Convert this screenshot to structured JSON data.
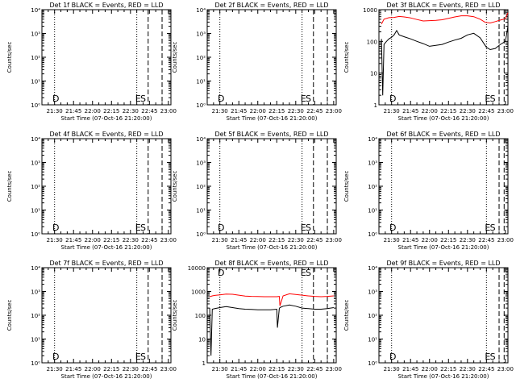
{
  "window": {
    "background": "#ffffff",
    "foreground": "#000000"
  },
  "x_axis": {
    "label": "Start Time (07-Oct-16 21:20:00)",
    "range": [
      "21:20",
      "23:02"
    ],
    "ticks": [
      "21:30",
      "21:45",
      "22:00",
      "22:15",
      "22:30",
      "22:45",
      "23:00"
    ],
    "tick_minutes": [
      10,
      25,
      40,
      55,
      70,
      85,
      100
    ]
  },
  "y_axis": {
    "label": "Counts/sec",
    "scale": "log"
  },
  "markers": {
    "dotted_minutes": [
      10,
      75
    ],
    "dashed_minutes": [
      84,
      95
    ]
  },
  "colors": {
    "events": "#000000",
    "lld": "#ff0000"
  },
  "chart_data": [
    {
      "type": "line",
      "title": "Det 1f BLACK = Events, RED = LLD",
      "yscale": "log",
      "ylim": [
        1,
        10000
      ],
      "yticks": [
        "10⁰",
        "10¹",
        "10²",
        "10³",
        "10⁴"
      ],
      "letters": [
        {
          "text": "D",
          "minute": 11
        },
        {
          "text": "E",
          "minute": 76
        },
        {
          "text": "S",
          "minute": 80
        }
      ],
      "series": []
    },
    {
      "type": "line",
      "title": "Det 2f BLACK = Events, RED = LLD",
      "yscale": "log",
      "ylim": [
        1,
        10000
      ],
      "yticks": [
        "10⁰",
        "10¹",
        "10²",
        "10³",
        "10⁴"
      ],
      "letters": [
        {
          "text": "D",
          "minute": 11
        },
        {
          "text": "E",
          "minute": 76
        },
        {
          "text": "S",
          "minute": 80
        }
      ],
      "series": []
    },
    {
      "type": "line",
      "title": "Det 3f BLACK = Events, RED = LLD",
      "yscale": "log",
      "ylim": [
        1,
        1000
      ],
      "yticks": [
        "1",
        "10",
        "100",
        "1000"
      ],
      "letters": [
        {
          "text": "D",
          "minute": 11
        },
        {
          "text": "E",
          "minute": 86
        },
        {
          "text": "S",
          "minute": 90
        }
      ],
      "series": [
        {
          "color": "#ff0000",
          "x": [
            2,
            4,
            8,
            12,
            16,
            20,
            25,
            30,
            35,
            40,
            45,
            50,
            55,
            60,
            65,
            70,
            75,
            80,
            84,
            88,
            92,
            96,
            100,
            102
          ],
          "y": [
            350,
            500,
            560,
            570,
            610,
            590,
            550,
            490,
            440,
            450,
            460,
            480,
            530,
            590,
            640,
            640,
            600,
            500,
            400,
            380,
            420,
            470,
            520,
            800
          ]
        },
        {
          "color": "#000000",
          "x": [
            2,
            3,
            4,
            6,
            8,
            10,
            12,
            14,
            16,
            20,
            25,
            30,
            35,
            40,
            45,
            50,
            55,
            60,
            65,
            70,
            75,
            80,
            85,
            88,
            92,
            96,
            100,
            102
          ],
          "y": [
            120,
            2,
            80,
            100,
            120,
            135,
            160,
            220,
            160,
            140,
            120,
            100,
            85,
            70,
            75,
            80,
            95,
            110,
            125,
            160,
            180,
            130,
            65,
            55,
            60,
            80,
            100,
            300
          ]
        }
      ]
    },
    {
      "type": "line",
      "title": "Det 4f BLACK = Events, RED = LLD",
      "yscale": "log",
      "ylim": [
        1,
        10000
      ],
      "yticks": [
        "10⁰",
        "10¹",
        "10²",
        "10³",
        "10⁴"
      ],
      "letters": [
        {
          "text": "D",
          "minute": 11
        },
        {
          "text": "E",
          "minute": 76
        },
        {
          "text": "S",
          "minute": 80
        }
      ],
      "series": []
    },
    {
      "type": "line",
      "title": "Det 5f BLACK = Events, RED = LLD",
      "yscale": "log",
      "ylim": [
        1,
        10000
      ],
      "yticks": [
        "10⁰",
        "10¹",
        "10²",
        "10³",
        "10⁴"
      ],
      "letters": [
        {
          "text": "D",
          "minute": 11
        },
        {
          "text": "E",
          "minute": 76
        },
        {
          "text": "S",
          "minute": 80
        }
      ],
      "series": []
    },
    {
      "type": "line",
      "title": "Det 6f BLACK = Events, RED = LLD",
      "yscale": "log",
      "ylim": [
        1,
        10000
      ],
      "yticks": [
        "10⁰",
        "10¹",
        "10²",
        "10³",
        "10⁴"
      ],
      "letters": [
        {
          "text": "D",
          "minute": 11
        },
        {
          "text": "E",
          "minute": 86
        },
        {
          "text": "S",
          "minute": 90
        }
      ],
      "series": []
    },
    {
      "type": "line",
      "title": "Det 7f BLACK = Events, RED = LLD",
      "yscale": "log",
      "ylim": [
        1,
        10000
      ],
      "yticks": [
        "10⁰",
        "10¹",
        "10²",
        "10³",
        "10⁴"
      ],
      "letters": [
        {
          "text": "D",
          "minute": 11
        },
        {
          "text": "E",
          "minute": 76
        },
        {
          "text": "S",
          "minute": 80
        }
      ],
      "series": []
    },
    {
      "type": "line",
      "title": "Det 8f BLACK = Events, RED = LLD",
      "yscale": "log",
      "ylim": [
        1,
        10000
      ],
      "yticks": [
        "1",
        "10",
        "100",
        "1000",
        "10000"
      ],
      "letters": [
        {
          "text": "D",
          "minute": 11
        },
        {
          "text": "E",
          "minute": 76
        },
        {
          "text": "S",
          "minute": 80
        }
      ],
      "series": [
        {
          "color": "#ff0000",
          "x": [
            2,
            4,
            6,
            10,
            15,
            20,
            25,
            30,
            35,
            40,
            45,
            50,
            55,
            57,
            57.5,
            60,
            65,
            70,
            75,
            80,
            85,
            90,
            95,
            100
          ],
          "y": [
            600,
            650,
            680,
            720,
            780,
            760,
            700,
            640,
            620,
            610,
            600,
            600,
            600,
            620,
            250,
            650,
            800,
            750,
            700,
            650,
            620,
            600,
            620,
            650
          ]
        },
        {
          "color": "#000000",
          "x": [
            2,
            3,
            4,
            6,
            10,
            15,
            20,
            25,
            30,
            35,
            40,
            45,
            50,
            55,
            55.5,
            57,
            57.5,
            60,
            65,
            70,
            75,
            80,
            85,
            90,
            95,
            100
          ],
          "y": [
            200,
            2,
            180,
            190,
            210,
            230,
            210,
            190,
            180,
            175,
            170,
            170,
            170,
            180,
            30,
            190,
            210,
            240,
            270,
            240,
            200,
            190,
            180,
            180,
            190,
            210
          ]
        }
      ]
    },
    {
      "type": "line",
      "title": "Det 9f BLACK = Events, RED = LLD",
      "yscale": "log",
      "ylim": [
        1,
        10000
      ],
      "yticks": [
        "10⁰",
        "10¹",
        "10²",
        "10³",
        "10⁴"
      ],
      "letters": [
        {
          "text": "D",
          "minute": 11
        },
        {
          "text": "E",
          "minute": 86
        },
        {
          "text": "S",
          "minute": 90
        }
      ],
      "series": []
    }
  ]
}
